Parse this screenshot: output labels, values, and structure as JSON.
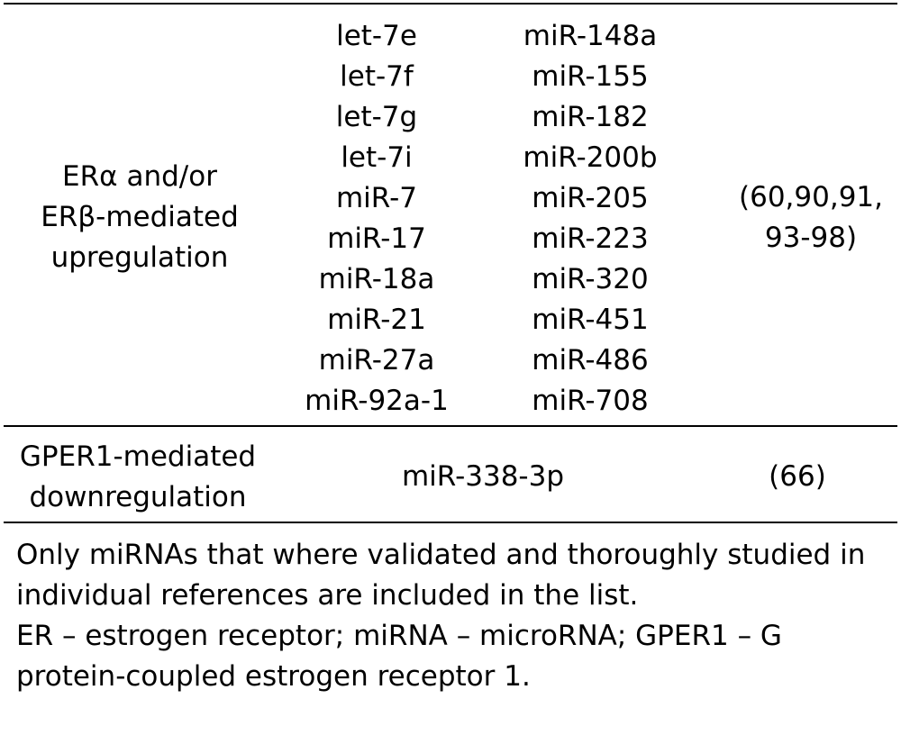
{
  "rows": [
    {
      "category_lines": [
        "ERα and/or",
        "ERβ-mediated",
        "upregulation"
      ],
      "mirna_col1": [
        "let-7e",
        "let-7f",
        "let-7g",
        "let-7i",
        "miR-7",
        "miR-17",
        "miR-18a",
        "miR-21",
        "miR-27a",
        "miR-92a-1"
      ],
      "mirna_col2": [
        "miR-148a",
        "miR-155",
        "miR-182",
        "miR-200b",
        "miR-205",
        "miR-223",
        "miR-320",
        "miR-451",
        "miR-486",
        "miR-708"
      ],
      "reference_lines": [
        "(60,90,91,",
        "93-98)"
      ]
    },
    {
      "category_lines": [
        "GPER1-mediated",
        "downregulation"
      ],
      "mirna": "miR-338-3p",
      "reference": "(66)"
    }
  ],
  "footnotes": {
    "lines": [
      "Only miRNAs that where validated and thoroughly studied in",
      "individual references are included in the list.",
      "ER – estrogen receptor; miRNA – microRNA; GPER1 – G",
      "protein-coupled estrogen receptor 1."
    ]
  }
}
